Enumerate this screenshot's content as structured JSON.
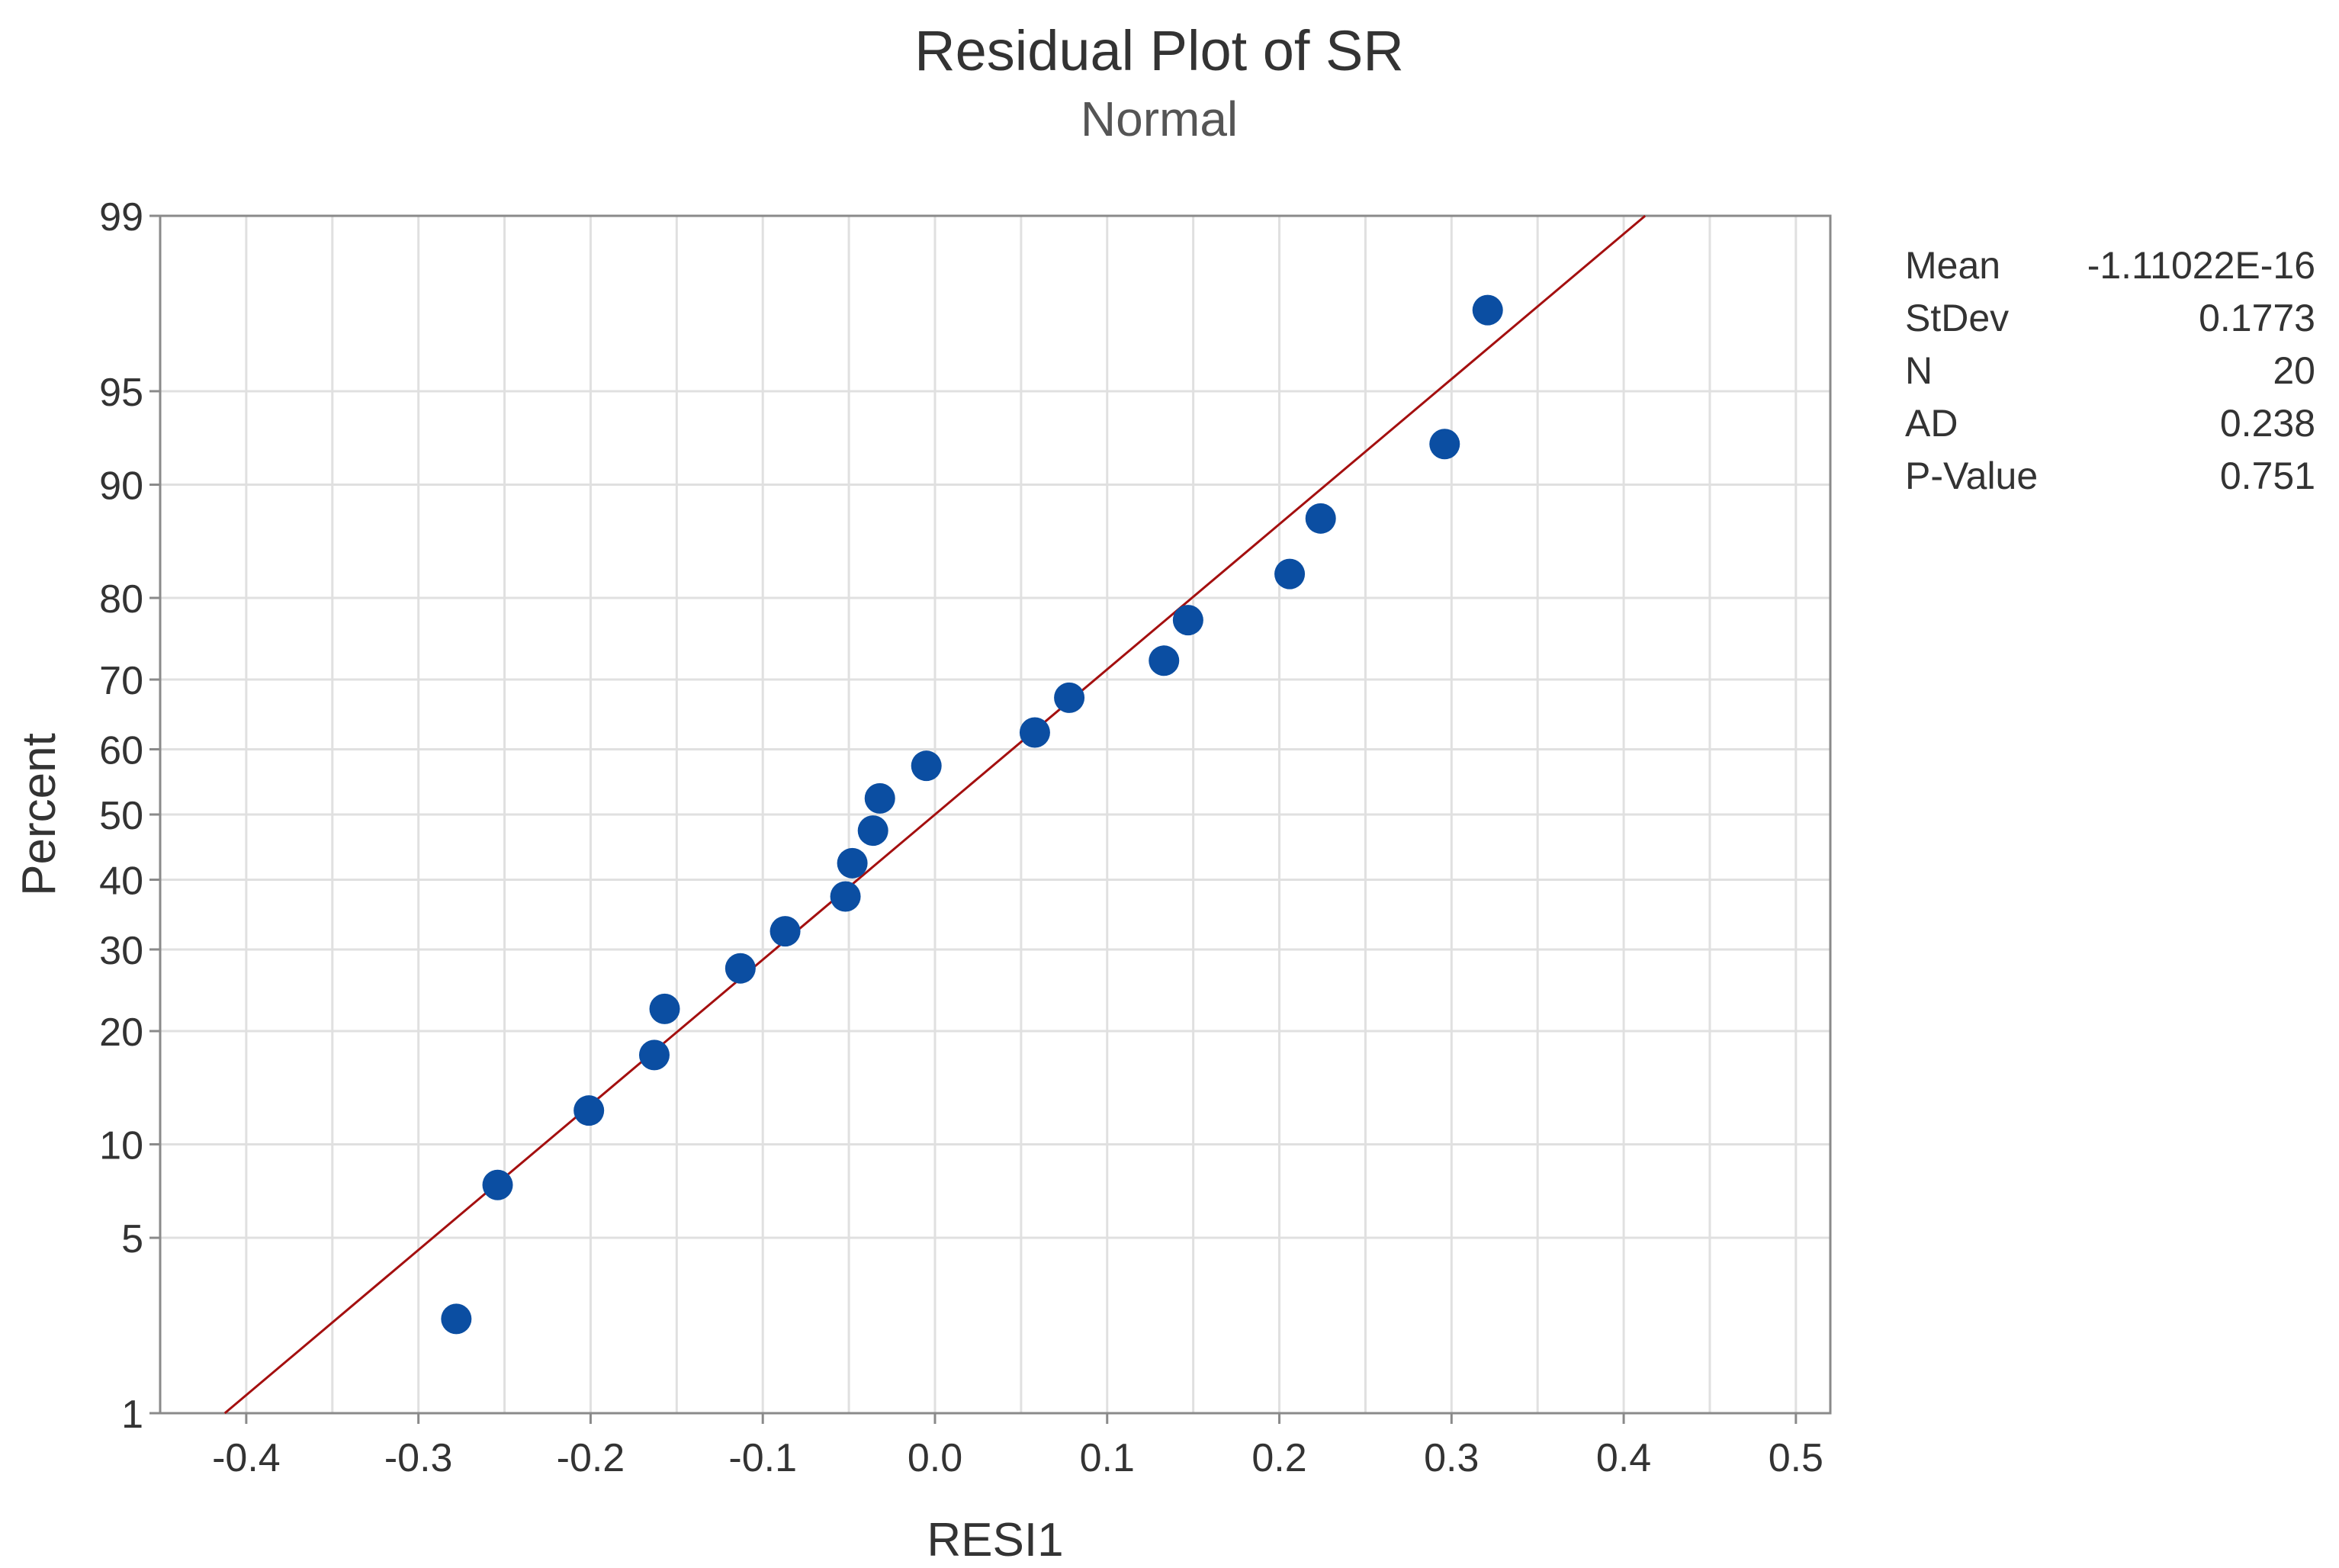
{
  "chart_data": {
    "type": "scatter",
    "title": "Residual Plot of SR",
    "subtitle": "Normal",
    "xlabel": "RESI1",
    "ylabel": "Percent",
    "xlim": [
      -0.45,
      0.52
    ],
    "x_ticks": [
      "-0.4",
      "-0.3",
      "-0.2",
      "-0.1",
      "0.0",
      "0.1",
      "0.2",
      "0.3",
      "0.4",
      "0.5"
    ],
    "y_scale": "normal-probability",
    "y_ticks": [
      "1",
      "5",
      "10",
      "20",
      "30",
      "40",
      "50",
      "60",
      "70",
      "80",
      "90",
      "95",
      "99"
    ],
    "grid": true,
    "series": [
      {
        "points": [
          {
            "x": -0.278,
            "y": 2.5
          },
          {
            "x": -0.254,
            "y": 7.5
          },
          {
            "x": -0.201,
            "y": 12.5
          },
          {
            "x": -0.163,
            "y": 17.5
          },
          {
            "x": -0.157,
            "y": 22.5
          },
          {
            "x": -0.113,
            "y": 27.5
          },
          {
            "x": -0.087,
            "y": 32.5
          },
          {
            "x": -0.052,
            "y": 37.5
          },
          {
            "x": -0.048,
            "y": 42.5
          },
          {
            "x": -0.036,
            "y": 47.5
          },
          {
            "x": -0.032,
            "y": 52.5
          },
          {
            "x": -0.005,
            "y": 57.5
          },
          {
            "x": 0.058,
            "y": 62.5
          },
          {
            "x": 0.078,
            "y": 67.5
          },
          {
            "x": 0.133,
            "y": 72.5
          },
          {
            "x": 0.147,
            "y": 77.5
          },
          {
            "x": 0.206,
            "y": 82.5
          },
          {
            "x": 0.224,
            "y": 87.5
          },
          {
            "x": 0.296,
            "y": 92.5
          },
          {
            "x": 0.321,
            "y": 97.5
          }
        ]
      }
    ],
    "fit_line": {
      "mean": -1.11022e-16,
      "stdev": 0.1773
    },
    "colors": {
      "points": "#0b4ea2",
      "fit_line": "#a40f0f",
      "grid": "#e0e0e0",
      "axes": "#8a8a8a",
      "text": "#333333"
    },
    "stats_table": [
      {
        "label": "Mean",
        "value": "-1.11022E-16"
      },
      {
        "label": "StDev",
        "value": "0.1773"
      },
      {
        "label": "N",
        "value": "20"
      },
      {
        "label": "AD",
        "value": "0.238"
      },
      {
        "label": "P-Value",
        "value": "0.751"
      }
    ]
  }
}
